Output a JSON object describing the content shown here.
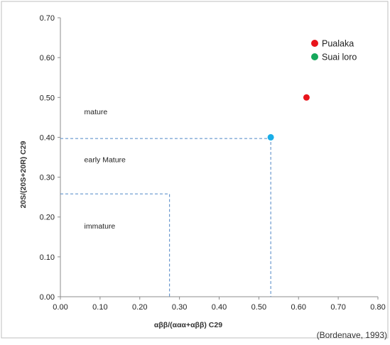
{
  "chart_data": {
    "type": "scatter",
    "title": "",
    "xlabel": "αββ/(ααα+αββ) C29",
    "ylabel": "20S/(20S+20R) C29",
    "xlim": [
      0,
      0.8
    ],
    "ylim": [
      0,
      0.7
    ],
    "x_ticks": [
      "0.00",
      "0.10",
      "0.20",
      "0.30",
      "0.40",
      "0.50",
      "0.60",
      "0.70",
      "0.80"
    ],
    "y_ticks": [
      "0.00",
      "0.10",
      "0.20",
      "0.30",
      "0.40",
      "0.50",
      "0.60",
      "0.70"
    ],
    "grid": false,
    "legend_position": "top-right",
    "series": [
      {
        "name": "Pualaka",
        "color": "#e8141b",
        "points": [
          {
            "x": 0.62,
            "y": 0.5
          }
        ]
      },
      {
        "name": "Suai loro",
        "color": "#15a85b",
        "points": []
      }
    ],
    "highlight_point": {
      "x": 0.53,
      "y": 0.4,
      "color": "#19aee8"
    },
    "zone_boundaries": [
      {
        "x": 0.275,
        "y": 0.258,
        "color": "#4f86c6"
      },
      {
        "x": 0.53,
        "y": 0.397,
        "color": "#4f86c6"
      }
    ],
    "zone_labels": [
      {
        "text": "mature",
        "x": 0.06,
        "y": 0.465
      },
      {
        "text": "early Mature",
        "x": 0.06,
        "y": 0.345
      },
      {
        "text": "immature",
        "x": 0.06,
        "y": 0.178
      }
    ],
    "citation": "(Bordenave, 1993)"
  }
}
